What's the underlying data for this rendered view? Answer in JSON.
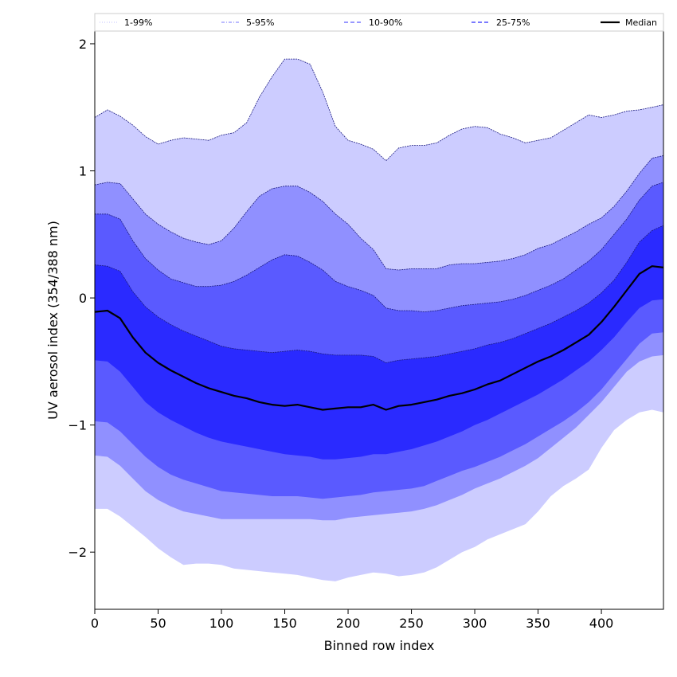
{
  "chart_data": {
    "type": "area",
    "title": "",
    "xlabel": "Binned row index",
    "ylabel": "UV aerosol index (354/388 nm)",
    "xlim": [
      0,
      449
    ],
    "ylim": [
      -2.45,
      2.1
    ],
    "xticks": [
      0,
      50,
      100,
      150,
      200,
      250,
      300,
      350,
      400
    ],
    "yticks": [
      -2,
      -1,
      0,
      1,
      2
    ],
    "ytick_labels": [
      "−2",
      "−1",
      "0",
      "1",
      "2"
    ],
    "grid": false,
    "legend_position": "top",
    "legend": [
      {
        "label": "1-99%",
        "color": "#ccccff",
        "style": "dotted"
      },
      {
        "label": "5-95%",
        "color": "#9090ff",
        "style": "dashdot"
      },
      {
        "label": "10-90%",
        "color": "#5a5aff",
        "style": "dashed"
      },
      {
        "label": "25-75%",
        "color": "#2a2aff",
        "style": "dashed"
      },
      {
        "label": "Median",
        "color": "#000000",
        "style": "solid"
      }
    ],
    "x": [
      0,
      10,
      20,
      30,
      40,
      50,
      60,
      70,
      80,
      90,
      100,
      110,
      120,
      130,
      140,
      150,
      160,
      170,
      180,
      190,
      200,
      210,
      220,
      230,
      240,
      250,
      260,
      270,
      280,
      290,
      300,
      310,
      320,
      330,
      340,
      350,
      360,
      370,
      380,
      390,
      400,
      410,
      420,
      430,
      440,
      449
    ],
    "bands": [
      {
        "name": "1-99%",
        "color": "#ccccff",
        "upper": [
          1.42,
          1.48,
          1.43,
          1.36,
          1.27,
          1.21,
          1.24,
          1.26,
          1.25,
          1.24,
          1.28,
          1.3,
          1.38,
          1.58,
          1.74,
          1.88,
          1.88,
          1.84,
          1.62,
          1.35,
          1.24,
          1.21,
          1.17,
          1.08,
          1.18,
          1.2,
          1.2,
          1.22,
          1.28,
          1.33,
          1.35,
          1.34,
          1.29,
          1.26,
          1.22,
          1.24,
          1.26,
          1.32,
          1.38,
          1.44,
          1.42,
          1.44,
          1.47,
          1.48,
          1.5,
          1.52
        ],
        "lower": [
          -1.66,
          -1.66,
          -1.72,
          -1.8,
          -1.88,
          -1.97,
          -2.04,
          -2.1,
          -2.09,
          -2.09,
          -2.1,
          -2.13,
          -2.14,
          -2.15,
          -2.16,
          -2.17,
          -2.18,
          -2.2,
          -2.22,
          -2.23,
          -2.2,
          -2.18,
          -2.16,
          -2.17,
          -2.19,
          -2.18,
          -2.16,
          -2.12,
          -2.06,
          -2.0,
          -1.96,
          -1.9,
          -1.86,
          -1.82,
          -1.78,
          -1.68,
          -1.56,
          -1.48,
          -1.42,
          -1.35,
          -1.18,
          -1.04,
          -0.96,
          -0.9,
          -0.88,
          -0.9
        ]
      },
      {
        "name": "5-95%",
        "color": "#9090ff",
        "upper": [
          0.89,
          0.91,
          0.9,
          0.78,
          0.66,
          0.58,
          0.52,
          0.47,
          0.44,
          0.42,
          0.45,
          0.55,
          0.68,
          0.8,
          0.86,
          0.88,
          0.88,
          0.83,
          0.76,
          0.66,
          0.58,
          0.47,
          0.38,
          0.23,
          0.22,
          0.23,
          0.23,
          0.23,
          0.26,
          0.27,
          0.27,
          0.28,
          0.29,
          0.31,
          0.34,
          0.39,
          0.42,
          0.47,
          0.52,
          0.58,
          0.63,
          0.72,
          0.84,
          0.98,
          1.1,
          1.12
        ],
        "lower": [
          -1.24,
          -1.25,
          -1.32,
          -1.42,
          -1.52,
          -1.59,
          -1.64,
          -1.68,
          -1.7,
          -1.72,
          -1.74,
          -1.74,
          -1.74,
          -1.74,
          -1.74,
          -1.74,
          -1.74,
          -1.74,
          -1.75,
          -1.75,
          -1.73,
          -1.72,
          -1.71,
          -1.7,
          -1.69,
          -1.68,
          -1.66,
          -1.63,
          -1.59,
          -1.55,
          -1.5,
          -1.46,
          -1.42,
          -1.37,
          -1.32,
          -1.26,
          -1.18,
          -1.1,
          -1.02,
          -0.92,
          -0.82,
          -0.7,
          -0.58,
          -0.5,
          -0.46,
          -0.45
        ]
      },
      {
        "name": "10-90%",
        "color": "#5a5aff",
        "upper": [
          0.66,
          0.66,
          0.62,
          0.45,
          0.31,
          0.22,
          0.15,
          0.12,
          0.09,
          0.09,
          0.1,
          0.13,
          0.18,
          0.24,
          0.3,
          0.34,
          0.33,
          0.28,
          0.22,
          0.13,
          0.09,
          0.06,
          0.02,
          -0.08,
          -0.1,
          -0.1,
          -0.11,
          -0.1,
          -0.08,
          -0.06,
          -0.05,
          -0.04,
          -0.03,
          -0.01,
          0.02,
          0.06,
          0.1,
          0.15,
          0.22,
          0.29,
          0.38,
          0.5,
          0.62,
          0.77,
          0.88,
          0.91
        ],
        "lower": [
          -0.97,
          -0.98,
          -1.05,
          -1.15,
          -1.25,
          -1.33,
          -1.39,
          -1.43,
          -1.46,
          -1.49,
          -1.52,
          -1.53,
          -1.54,
          -1.55,
          -1.56,
          -1.56,
          -1.56,
          -1.57,
          -1.58,
          -1.57,
          -1.56,
          -1.55,
          -1.53,
          -1.52,
          -1.51,
          -1.5,
          -1.48,
          -1.44,
          -1.4,
          -1.36,
          -1.33,
          -1.29,
          -1.25,
          -1.2,
          -1.15,
          -1.09,
          -1.03,
          -0.97,
          -0.9,
          -0.82,
          -0.72,
          -0.6,
          -0.48,
          -0.36,
          -0.28,
          -0.27
        ]
      },
      {
        "name": "25-75%",
        "color": "#2a2aff",
        "upper": [
          0.26,
          0.25,
          0.21,
          0.05,
          -0.07,
          -0.15,
          -0.21,
          -0.26,
          -0.3,
          -0.34,
          -0.38,
          -0.4,
          -0.41,
          -0.42,
          -0.43,
          -0.42,
          -0.41,
          -0.42,
          -0.44,
          -0.45,
          -0.45,
          -0.45,
          -0.46,
          -0.51,
          -0.49,
          -0.48,
          -0.47,
          -0.46,
          -0.44,
          -0.42,
          -0.4,
          -0.37,
          -0.35,
          -0.32,
          -0.28,
          -0.24,
          -0.2,
          -0.15,
          -0.1,
          -0.04,
          0.04,
          0.14,
          0.28,
          0.44,
          0.53,
          0.57
        ],
        "lower": [
          -0.49,
          -0.5,
          -0.58,
          -0.7,
          -0.82,
          -0.9,
          -0.96,
          -1.01,
          -1.06,
          -1.1,
          -1.13,
          -1.15,
          -1.17,
          -1.19,
          -1.21,
          -1.23,
          -1.24,
          -1.25,
          -1.27,
          -1.27,
          -1.26,
          -1.25,
          -1.23,
          -1.23,
          -1.21,
          -1.19,
          -1.16,
          -1.13,
          -1.09,
          -1.05,
          -1.0,
          -0.96,
          -0.91,
          -0.86,
          -0.81,
          -0.76,
          -0.7,
          -0.64,
          -0.57,
          -0.5,
          -0.41,
          -0.31,
          -0.19,
          -0.08,
          -0.02,
          -0.01
        ]
      }
    ],
    "series": [
      {
        "name": "Median",
        "color": "#000000",
        "values": [
          -0.11,
          -0.1,
          -0.16,
          -0.31,
          -0.43,
          -0.51,
          -0.57,
          -0.62,
          -0.67,
          -0.71,
          -0.74,
          -0.77,
          -0.79,
          -0.82,
          -0.84,
          -0.85,
          -0.84,
          -0.86,
          -0.88,
          -0.87,
          -0.86,
          -0.86,
          -0.84,
          -0.88,
          -0.85,
          -0.84,
          -0.82,
          -0.8,
          -0.77,
          -0.75,
          -0.72,
          -0.68,
          -0.65,
          -0.6,
          -0.55,
          -0.5,
          -0.46,
          -0.41,
          -0.35,
          -0.29,
          -0.19,
          -0.07,
          0.06,
          0.19,
          0.25,
          0.24
        ]
      }
    ]
  }
}
